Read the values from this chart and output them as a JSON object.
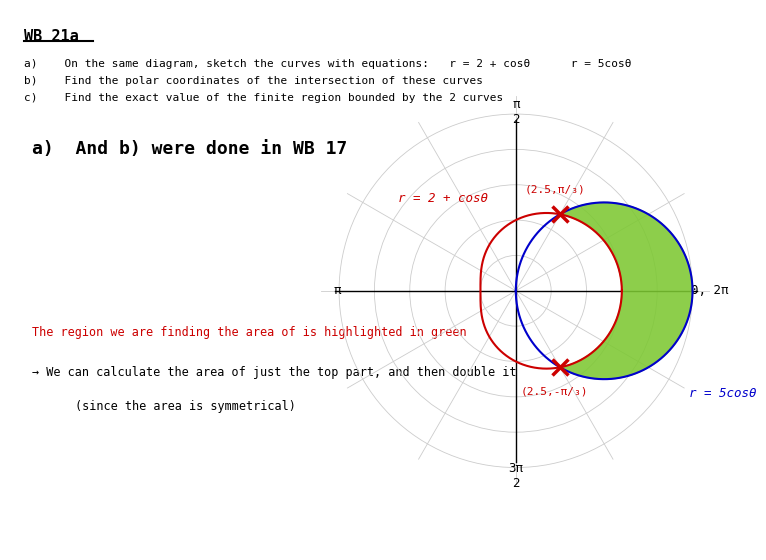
{
  "bg_color": "#ffffff",
  "title_text": "WB 21a",
  "header_a": "a)    On the same diagram, sketch the curves with equations:   r = 2 + cosθ      r = 5cosθ",
  "header_b": "b)    Find the polar coordinates of the intersection of these curves",
  "header_c": "c)    Find the exact value of the finite region bounded by the 2 curves",
  "note_wb17": "a)  And b) were done in WB 17",
  "note_green": "The region we are finding the area of is highlighted in green",
  "note_arrow1": "→ We can calculate the area of just the top part, and then double it",
  "note_arrow2": "(since the area is symmetrical)",
  "curve1_label": "r = 2 + cosθ",
  "curve2_label": "r = 5cosθ",
  "curve1_color": "#cc0000",
  "curve2_color": "#0000cc",
  "fill_color": "#7dc832",
  "marker_color": "#cc0000",
  "int1_label": "(2.5,π/₃)",
  "int2_label": "(2.5,-π/₃)",
  "lim": 5.5,
  "grid_radii": [
    1,
    2,
    3,
    4,
    5
  ],
  "spoke_angles_deg": [
    0,
    30,
    60,
    90,
    120,
    150
  ]
}
